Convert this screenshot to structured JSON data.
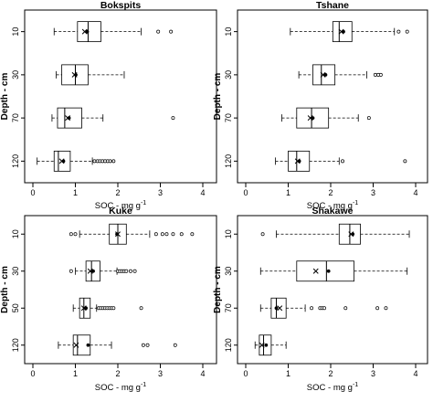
{
  "chart_data": [
    {
      "type": "boxplot",
      "title": "Bokspits",
      "xlabel": "SOC - mg g",
      "xlabel_superscript": "-1",
      "ylabel": "Depth - cm",
      "xlim": [
        0,
        4
      ],
      "x_ticks": [
        "0",
        "1",
        "2",
        "3",
        "4"
      ],
      "categories": [
        "10",
        "30",
        "70",
        "120"
      ],
      "boxes": [
        {
          "depth": "10",
          "whisker_low": 0.5,
          "q1": 1.05,
          "median": 1.3,
          "q3": 1.6,
          "whisker_high": 2.55,
          "mean_star": 1.22,
          "mean_dot": 1.28,
          "outliers": [
            2.95,
            3.25
          ]
        },
        {
          "depth": "30",
          "whisker_low": 0.55,
          "q1": 0.68,
          "median": 1.0,
          "q3": 1.3,
          "whisker_high": 2.15,
          "mean_star": 0.98,
          "mean_dot": 1.01,
          "outliers": []
        },
        {
          "depth": "70",
          "whisker_low": 0.45,
          "q1": 0.58,
          "median": 0.75,
          "q3": 1.15,
          "whisker_high": 1.65,
          "mean_star": 0.82,
          "mean_dot": 0.85,
          "outliers": [
            3.3
          ]
        },
        {
          "depth": "120",
          "whisker_low": 0.1,
          "q1": 0.5,
          "median": 0.6,
          "q3": 0.88,
          "whisker_high": 1.4,
          "mean_star": 0.68,
          "mean_dot": 0.72,
          "outliers": [
            1.45,
            1.52,
            1.58,
            1.64,
            1.7,
            1.76,
            1.82,
            1.9
          ]
        }
      ]
    },
    {
      "type": "boxplot",
      "title": "Tshane",
      "xlabel": "SOC - mg g",
      "xlabel_superscript": "-1",
      "ylabel": "Depth - cm",
      "xlim": [
        0,
        4
      ],
      "x_ticks": [
        "0",
        "1",
        "2",
        "3",
        "4"
      ],
      "categories": [
        "10",
        "30",
        "70",
        "120"
      ],
      "boxes": [
        {
          "depth": "10",
          "whisker_low": 1.05,
          "q1": 2.05,
          "median": 2.2,
          "q3": 2.5,
          "whisker_high": 3.5,
          "mean_star": 2.25,
          "mean_dot": 2.3,
          "outliers": [
            3.6,
            3.8
          ]
        },
        {
          "depth": "30",
          "whisker_low": 1.25,
          "q1": 1.58,
          "median": 1.78,
          "q3": 2.1,
          "whisker_high": 2.85,
          "mean_star": 1.82,
          "mean_dot": 1.88,
          "outliers": [
            3.05,
            3.12,
            3.18
          ]
        },
        {
          "depth": "70",
          "whisker_low": 0.85,
          "q1": 1.2,
          "median": 1.55,
          "q3": 1.95,
          "whisker_high": 2.65,
          "mean_star": 1.52,
          "mean_dot": 1.58,
          "outliers": [
            2.9
          ]
        },
        {
          "depth": "120",
          "whisker_low": 0.7,
          "q1": 1.0,
          "median": 1.2,
          "q3": 1.5,
          "whisker_high": 2.2,
          "mean_star": 1.22,
          "mean_dot": 1.26,
          "outliers": [
            2.28,
            3.75
          ]
        }
      ]
    },
    {
      "type": "boxplot",
      "title": "Kuke",
      "xlabel": "SOC - mg g",
      "xlabel_superscript": "-1",
      "ylabel": "Depth - cm",
      "xlim": [
        0,
        4
      ],
      "x_ticks": [
        "0",
        "1",
        "2",
        "3",
        "4"
      ],
      "categories": [
        "10",
        "30",
        "50",
        "120"
      ],
      "boxes": [
        {
          "depth": "10",
          "whisker_low": 1.1,
          "q1": 1.8,
          "median": 2.0,
          "q3": 2.2,
          "whisker_high": 2.75,
          "mean_star": 2.0,
          "mean_dot": 1.98,
          "outliers": [
            0.9,
            1.0,
            2.9,
            3.05,
            3.15,
            3.3,
            3.5,
            3.75
          ]
        },
        {
          "depth": "30",
          "whisker_low": 1.0,
          "q1": 1.25,
          "median": 1.38,
          "q3": 1.58,
          "whisker_high": 1.98,
          "mean_star": 1.35,
          "mean_dot": 1.42,
          "outliers": [
            0.9,
            2.0,
            2.05,
            2.1,
            2.15,
            2.2,
            2.3,
            2.4
          ]
        },
        {
          "depth": "50",
          "whisker_low": 0.95,
          "q1": 1.1,
          "median": 1.2,
          "q3": 1.35,
          "whisker_high": 1.5,
          "mean_star": 1.2,
          "mean_dot": 1.25,
          "outliers": [
            1.55,
            1.6,
            1.65,
            1.7,
            1.75,
            1.8,
            1.85,
            1.9,
            2.55
          ]
        },
        {
          "depth": "120",
          "whisker_low": 0.6,
          "q1": 0.95,
          "median": 1.05,
          "q3": 1.35,
          "whisker_high": 1.85,
          "mean_star": 1.02,
          "mean_dot": 1.3,
          "outliers": [
            2.6,
            2.7,
            3.35
          ]
        }
      ]
    },
    {
      "type": "boxplot",
      "title": "Shakawe",
      "xlabel": "SOC - mg g",
      "xlabel_superscript": "-1",
      "ylabel": "Depth - cm",
      "xlim": [
        0,
        4
      ],
      "x_ticks": [
        "0",
        "1",
        "2",
        "3",
        "4"
      ],
      "categories": [
        "10",
        "30",
        "70",
        "120"
      ],
      "boxes": [
        {
          "depth": "10",
          "whisker_low": 0.72,
          "q1": 2.2,
          "median": 2.45,
          "q3": 2.7,
          "whisker_high": 3.85,
          "mean_star": 2.48,
          "mean_dot": 2.52,
          "outliers": [
            0.4
          ]
        },
        {
          "depth": "30",
          "whisker_low": 0.35,
          "q1": 1.2,
          "median": 1.9,
          "q3": 2.55,
          "whisker_high": 3.8,
          "mean_star": 1.65,
          "mean_dot": 1.95,
          "outliers": []
        },
        {
          "depth": "70",
          "whisker_low": 0.35,
          "q1": 0.6,
          "median": 0.72,
          "q3": 0.95,
          "whisker_high": 1.4,
          "mean_star": 0.8,
          "mean_dot": 0.72,
          "outliers": [
            1.55,
            1.75,
            1.8,
            1.85,
            2.35,
            3.1,
            3.3
          ]
        },
        {
          "depth": "120",
          "whisker_low": 0.22,
          "q1": 0.32,
          "median": 0.42,
          "q3": 0.6,
          "whisker_high": 0.95,
          "mean_star": 0.38,
          "mean_dot": 0.48,
          "outliers": []
        }
      ]
    }
  ]
}
